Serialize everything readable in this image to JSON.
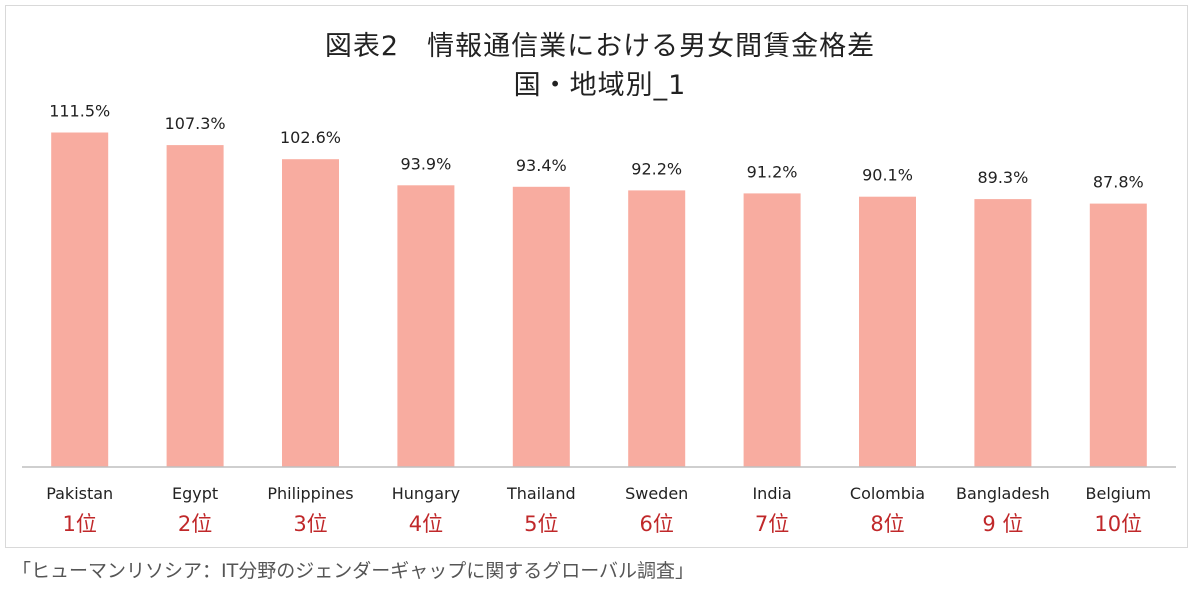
{
  "chart_data": {
    "type": "bar",
    "title": "図表2　情報通信業における男女間賃金格差",
    "subtitle": "国・地域別_1",
    "categories": [
      "Pakistan",
      "Egypt",
      "Philippines",
      "Hungary",
      "Thailand",
      "Sweden",
      "India",
      "Colombia",
      "Bangladesh",
      "Belgium"
    ],
    "values": [
      111.5,
      107.3,
      102.6,
      93.9,
      93.4,
      92.2,
      91.2,
      90.1,
      89.3,
      87.8
    ],
    "value_labels": [
      "111.5%",
      "107.3%",
      "102.6%",
      "93.9%",
      "93.4%",
      "92.2%",
      "91.2%",
      "90.1%",
      "89.3%",
      "87.8%"
    ],
    "rank_labels": [
      "1位",
      "2位",
      "3位",
      "4位",
      "5位",
      "6位",
      "7位",
      "8位",
      "9 位",
      "10位"
    ],
    "ylim": [
      0,
      115
    ],
    "grid": false,
    "legend": "none",
    "bar_color": "#f8aca0",
    "rank_color": "#c0282a",
    "axis_color": "#bfbfbf"
  },
  "source_note": "「ヒューマンリソシア：IT分野のジェンダーギャップに関するグローバル調査」"
}
